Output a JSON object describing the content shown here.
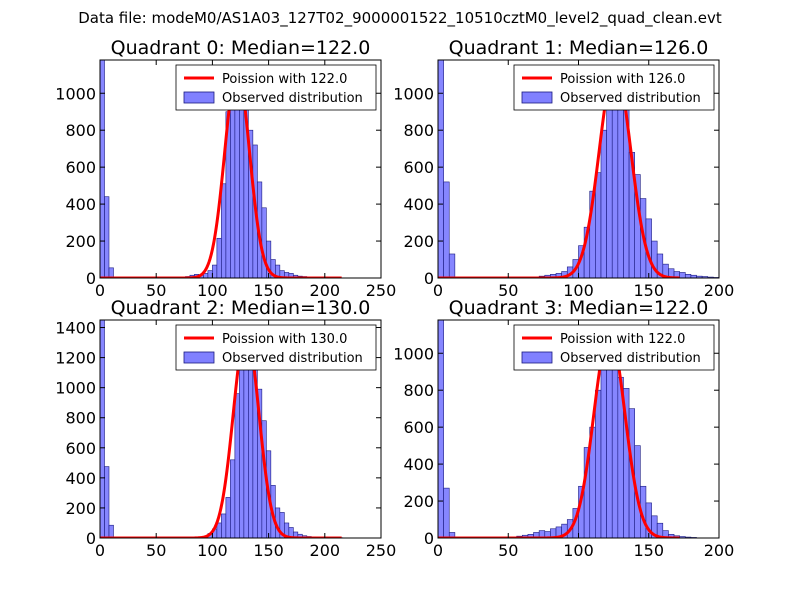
{
  "figure": {
    "suptitle": "Data file: modeM0/AS1A03_127T02_9000001522_10510cztM0_level2_quad_clean.evt"
  },
  "chart_data": [
    {
      "type": "bar",
      "title": "Quadrant 0: Median=122.0",
      "xlabel": "",
      "ylabel": "",
      "xlim": [
        0,
        250
      ],
      "ylim": [
        0,
        1180
      ],
      "xticks": [
        0,
        50,
        100,
        150,
        200,
        250
      ],
      "yticks": [
        0,
        200,
        400,
        600,
        800,
        1000
      ],
      "legend_position": "upper-right",
      "poisson": {
        "label": "Poission with 122.0",
        "mean": 122.0,
        "peak": 1125,
        "color": "#ff0000"
      },
      "bins": {
        "label": "Observed distribution",
        "width": 4,
        "color": "#8080ff",
        "centers": [
          2,
          6,
          10,
          78,
          82,
          86,
          90,
          94,
          98,
          102,
          106,
          110,
          114,
          118,
          122,
          126,
          130,
          134,
          138,
          142,
          146,
          150,
          154,
          158,
          162,
          166,
          170,
          174,
          178,
          182,
          186,
          190,
          194,
          198,
          202,
          206
        ],
        "values": [
          1180,
          440,
          55,
          8,
          15,
          20,
          15,
          25,
          40,
          70,
          215,
          510,
          900,
          1010,
          1080,
          1040,
          1000,
          800,
          720,
          520,
          380,
          200,
          100,
          70,
          40,
          30,
          25,
          15,
          10,
          8,
          5,
          5,
          3,
          3,
          3,
          2
        ]
      }
    },
    {
      "type": "bar",
      "title": "Quadrant 1: Median=126.0",
      "xlabel": "",
      "ylabel": "",
      "xlim": [
        0,
        200
      ],
      "ylim": [
        0,
        1180
      ],
      "xticks": [
        0,
        50,
        100,
        150,
        200
      ],
      "yticks": [
        0,
        200,
        400,
        600,
        800,
        1000
      ],
      "legend_position": "upper-right",
      "poisson": {
        "label": "Poission with 126.0",
        "mean": 126.0,
        "peak": 1140,
        "color": "#ff0000"
      },
      "bins": {
        "label": "Observed distribution",
        "width": 4,
        "color": "#8080ff",
        "centers": [
          2,
          6,
          10,
          70,
          74,
          78,
          82,
          86,
          90,
          94,
          98,
          102,
          106,
          110,
          114,
          118,
          122,
          126,
          130,
          134,
          138,
          142,
          146,
          150,
          154,
          158,
          162,
          166,
          170,
          174,
          178,
          182,
          186,
          190,
          194,
          198
        ],
        "values": [
          1180,
          520,
          130,
          5,
          10,
          15,
          20,
          25,
          35,
          60,
          100,
          175,
          275,
          470,
          570,
          800,
          960,
          1030,
          1050,
          910,
          680,
          560,
          430,
          320,
          200,
          130,
          75,
          50,
          35,
          30,
          20,
          15,
          10,
          8,
          5,
          3
        ]
      }
    },
    {
      "type": "bar",
      "title": "Quadrant 2: Median=130.0",
      "xlabel": "",
      "ylabel": "",
      "xlim": [
        0,
        250
      ],
      "ylim": [
        0,
        1450
      ],
      "xticks": [
        0,
        50,
        100,
        150,
        200,
        250
      ],
      "yticks": [
        0,
        200,
        400,
        600,
        800,
        1000,
        1200,
        1400
      ],
      "legend_position": "upper-right",
      "poisson": {
        "label": "Poission with 130.0",
        "mean": 130.0,
        "peak": 1370,
        "color": "#ff0000"
      },
      "bins": {
        "label": "Observed distribution",
        "width": 4,
        "color": "#8080ff",
        "centers": [
          2,
          6,
          10,
          90,
          94,
          98,
          102,
          106,
          110,
          114,
          118,
          122,
          126,
          130,
          134,
          138,
          142,
          146,
          150,
          154,
          158,
          162,
          166,
          170,
          174,
          178,
          182,
          186,
          190,
          194,
          198,
          202,
          206,
          210,
          214
        ],
        "values": [
          1450,
          475,
          85,
          5,
          10,
          30,
          60,
          100,
          160,
          270,
          520,
          960,
          1160,
          1290,
          1350,
          1220,
          990,
          780,
          580,
          350,
          200,
          170,
          100,
          70,
          40,
          25,
          15,
          10,
          8,
          5,
          4,
          3,
          3,
          2,
          2
        ]
      }
    },
    {
      "type": "bar",
      "title": "Quadrant 3: Median=122.0",
      "xlabel": "",
      "ylabel": "",
      "xlim": [
        0,
        200
      ],
      "ylim": [
        0,
        1180
      ],
      "xticks": [
        0,
        50,
        100,
        150,
        200
      ],
      "yticks": [
        0,
        200,
        400,
        600,
        800,
        1000
      ],
      "legend_position": "upper-right",
      "poisson": {
        "label": "Poission with 122.0",
        "mean": 122.0,
        "peak": 1110,
        "color": "#ff0000"
      },
      "bins": {
        "label": "Observed distribution",
        "width": 4,
        "color": "#8080ff",
        "centers": [
          2,
          6,
          10,
          54,
          58,
          62,
          66,
          70,
          74,
          78,
          82,
          86,
          90,
          94,
          98,
          102,
          106,
          110,
          114,
          118,
          122,
          126,
          130,
          134,
          138,
          142,
          146,
          150,
          154,
          158,
          162,
          166,
          170,
          174,
          178,
          182
        ],
        "values": [
          1180,
          270,
          30,
          5,
          10,
          15,
          20,
          30,
          40,
          35,
          50,
          60,
          75,
          100,
          160,
          280,
          490,
          600,
          800,
          1000,
          1060,
          1020,
          870,
          810,
          700,
          500,
          280,
          190,
          120,
          80,
          40,
          20,
          12,
          8,
          5,
          3
        ]
      }
    }
  ]
}
